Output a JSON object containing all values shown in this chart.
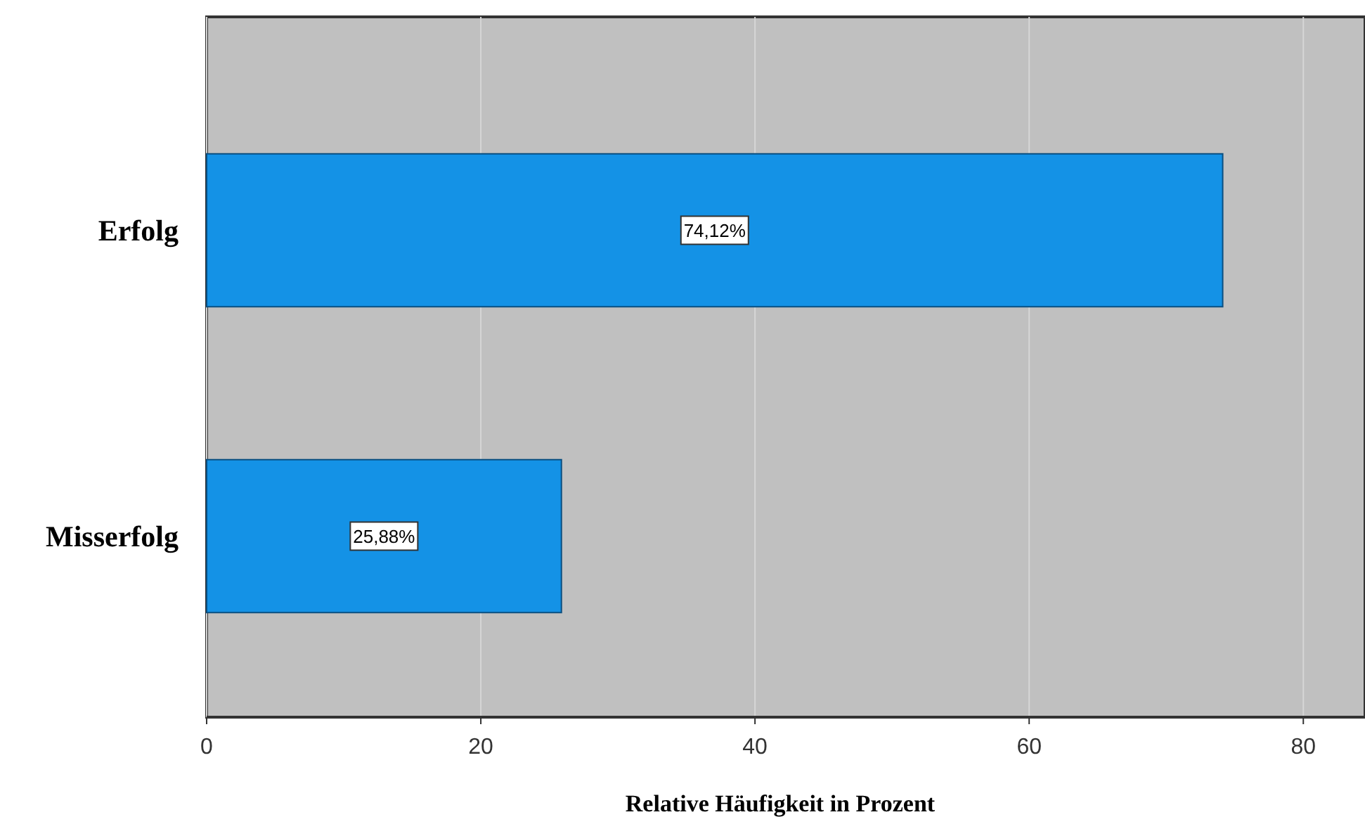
{
  "chart_data": {
    "type": "bar",
    "orientation": "horizontal",
    "categories": [
      "Erfolg",
      "Misserfolg"
    ],
    "values": [
      74.12,
      25.88
    ],
    "value_labels": [
      "74,12%",
      "25,88%"
    ],
    "color": "#1492e6",
    "xlabel": "Relative Häufigkeit in Prozent",
    "xlim": [
      0,
      84.5
    ],
    "xticks": [
      0,
      20,
      40,
      60,
      80
    ],
    "grid": "x"
  }
}
